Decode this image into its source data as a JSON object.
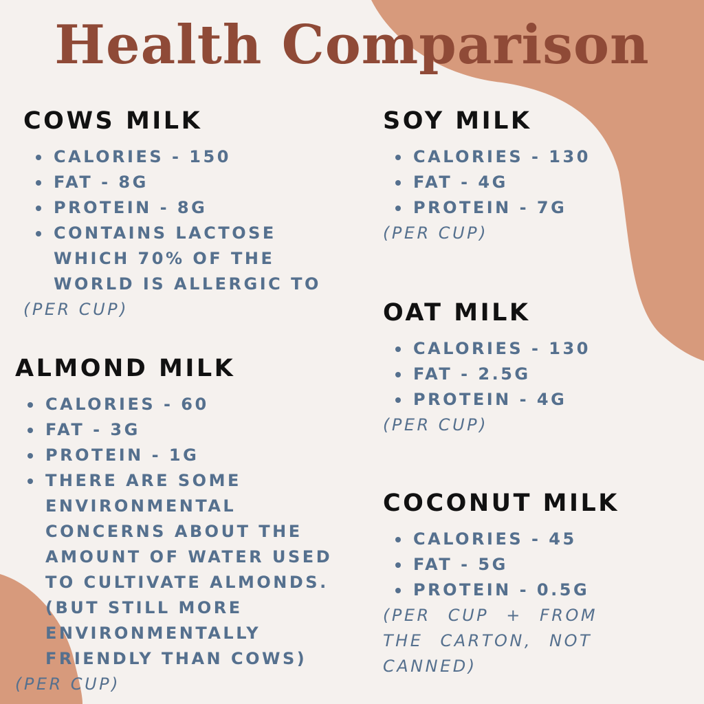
{
  "title": "Health Comparison",
  "colors": {
    "background": "#f5f1ee",
    "blob": "#d79a7c",
    "title": "#8f4a37",
    "heading": "#111111",
    "text": "#55708e"
  },
  "cows": {
    "heading": "COWS MILK",
    "items": [
      "CALORIES - 150",
      "FAT - 8G",
      "PROTEIN - 8G",
      "CONTAINS LACTOSE\nWHICH 70% OF THE\nWORLD IS ALLERGIC TO"
    ],
    "note": "(PER CUP)"
  },
  "almond": {
    "heading": "ALMOND MILK",
    "items": [
      "CALORIES - 60",
      "FAT - 3G",
      "PROTEIN - 1G",
      "THERE ARE SOME\nENVIRONMENTAL\nCONCERNS ABOUT THE\nAMOUNT OF WATER USED\nTO CULTIVATE ALMONDS.\n(BUT STILL MORE\nENVIRONMENTALLY\nFRIENDLY THAN COWS)"
    ],
    "note": "(PER CUP)"
  },
  "soy": {
    "heading": "SOY MILK",
    "items": [
      "CALORIES - 130",
      "FAT - 4G",
      "PROTEIN - 7G"
    ],
    "note": "(PER CUP)"
  },
  "oat": {
    "heading": "OAT MILK",
    "items": [
      "CALORIES - 130",
      "FAT - 2.5G",
      "PROTEIN - 4G"
    ],
    "note": "(PER CUP)"
  },
  "coconut": {
    "heading": "COCONUT MILK",
    "items": [
      "CALORIES - 45",
      "FAT - 5G",
      "PROTEIN - 0.5G"
    ],
    "note": "(PER CUP + FROM\nTHE CARTON, NOT\nCANNED)"
  }
}
